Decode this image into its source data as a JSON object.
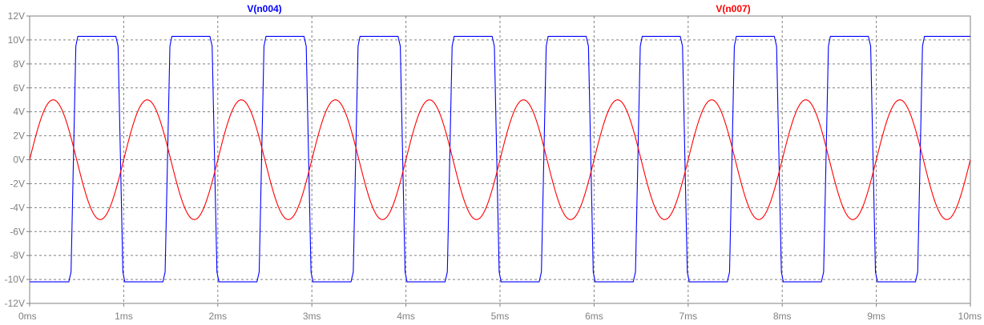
{
  "colors": {
    "background": "#ffffff",
    "axis": "#808080",
    "grid": "#808080",
    "series_v004": "#0000ff",
    "series_v007": "#ff0000"
  },
  "chart_data": {
    "type": "line",
    "grid": true,
    "legend_placement": "top",
    "xlim": [
      0,
      10
    ],
    "ylim": [
      -12,
      12
    ],
    "x_unit": "ms",
    "y_unit": "V",
    "x_ticks": [
      0,
      1,
      2,
      3,
      4,
      5,
      6,
      7,
      8,
      9,
      10
    ],
    "x_tick_labels": [
      "0ms",
      "1ms",
      "2ms",
      "3ms",
      "4ms",
      "5ms",
      "6ms",
      "7ms",
      "8ms",
      "9ms",
      "10ms"
    ],
    "y_ticks": [
      12,
      10,
      8,
      6,
      4,
      2,
      0,
      -2,
      -4,
      -6,
      -8,
      -10,
      -12
    ],
    "y_tick_labels": [
      "12V",
      "10V",
      "8V",
      "6V",
      "4V",
      "2V",
      "0V",
      "-2V",
      "-4V",
      "-6V",
      "-8V",
      "-10V",
      "-12V"
    ],
    "series": [
      {
        "name": "V(n004)",
        "color": "#0000ff",
        "kind": "square",
        "high": 10.3,
        "low": -10.2,
        "rise_times_ms": [
          0.5,
          1.5,
          2.5,
          3.5,
          4.5,
          5.5,
          6.5,
          7.5,
          8.5,
          9.5
        ],
        "fall_times_ms": [
          1.0,
          2.0,
          3.0,
          4.0,
          5.0,
          6.0,
          7.0,
          8.0,
          9.0
        ],
        "transition_ms": 0.06,
        "initial": -10.2
      },
      {
        "name": "V(n007)",
        "color": "#ff0000",
        "kind": "sine",
        "amplitude": 5,
        "frequency_khz": 1,
        "phase_deg": 0,
        "offset": 0
      }
    ]
  }
}
